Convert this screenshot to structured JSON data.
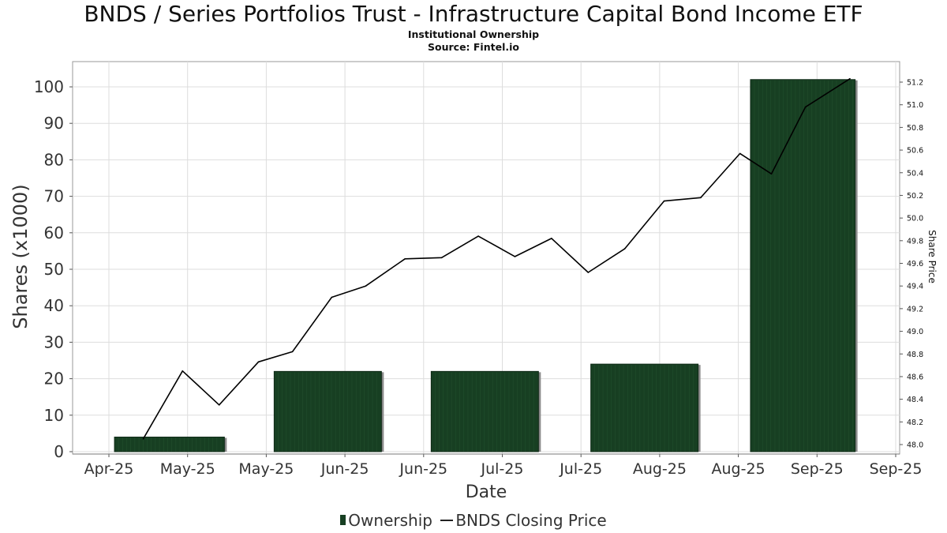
{
  "header": {
    "title": "BNDS / Series Portfolios Trust - Infrastructure Capital Bond Income ETF",
    "subtitle": "Institutional Ownership",
    "source": "Source: Fintel.io"
  },
  "colors": {
    "bar_fill": "#173f22",
    "bar_shadow": "#8a8a8a",
    "line": "#000000",
    "grid": "#dddddd"
  },
  "chart_data": {
    "type": "bar",
    "xlabel": "Date",
    "ylabel": "Shares (x1000)",
    "y2label": "Share Price",
    "x_tick_labels": [
      "Apr-25",
      "May-25",
      "May-25",
      "Jun-25",
      "Jun-25",
      "Jul-25",
      "Jul-25",
      "Aug-25",
      "Aug-25",
      "Sep-25",
      "Sep-25"
    ],
    "ylim": [
      0,
      105
    ],
    "yticks": [
      0,
      10,
      20,
      30,
      40,
      50,
      60,
      70,
      80,
      90,
      100
    ],
    "y2lim": [
      47.95,
      51.3
    ],
    "y2ticks": [
      "48.0",
      "48.2",
      "48.4",
      "48.6",
      "48.8",
      "49.0",
      "49.2",
      "49.4",
      "49.6",
      "49.8",
      "50.0",
      "50.2",
      "50.4",
      "50.6",
      "50.8",
      "51.0",
      "51.2"
    ],
    "grid": true,
    "legend_position": "bottom",
    "series": [
      {
        "name": "Ownership",
        "kind": "bar",
        "axis": "left",
        "bars": [
          {
            "start": "2025-04-01",
            "end": "2025-05-13",
            "value": 4
          },
          {
            "start": "2025-06-01",
            "end": "2025-07-12",
            "value": 22
          },
          {
            "start": "2025-07-31",
            "end": "2025-09-10",
            "value": 22
          },
          {
            "start": "2025-09-30",
            "end": "2025-11-10",
            "value": 24
          },
          {
            "start": "2025-11-30",
            "end": "2026-01-09",
            "value": 102
          }
        ]
      },
      {
        "name": "BNDS Closing Price",
        "kind": "line",
        "axis": "right",
        "x": [
          "2025-04-12",
          "2025-04-27",
          "2025-05-11",
          "2025-05-26",
          "2025-06-08",
          "2025-06-23",
          "2025-07-06",
          "2025-07-21",
          "2025-08-04",
          "2025-08-18",
          "2025-09-01",
          "2025-09-15",
          "2025-09-29",
          "2025-10-13",
          "2025-10-28",
          "2025-11-11",
          "2025-11-26",
          "2025-12-08",
          "2025-12-21",
          "2026-01-07"
        ],
        "values": [
          48.05,
          48.65,
          48.35,
          48.73,
          48.82,
          49.3,
          49.4,
          49.64,
          49.65,
          49.84,
          49.66,
          49.82,
          49.52,
          49.73,
          50.15,
          50.18,
          50.57,
          50.39,
          50.98,
          51.23
        ]
      }
    ]
  }
}
